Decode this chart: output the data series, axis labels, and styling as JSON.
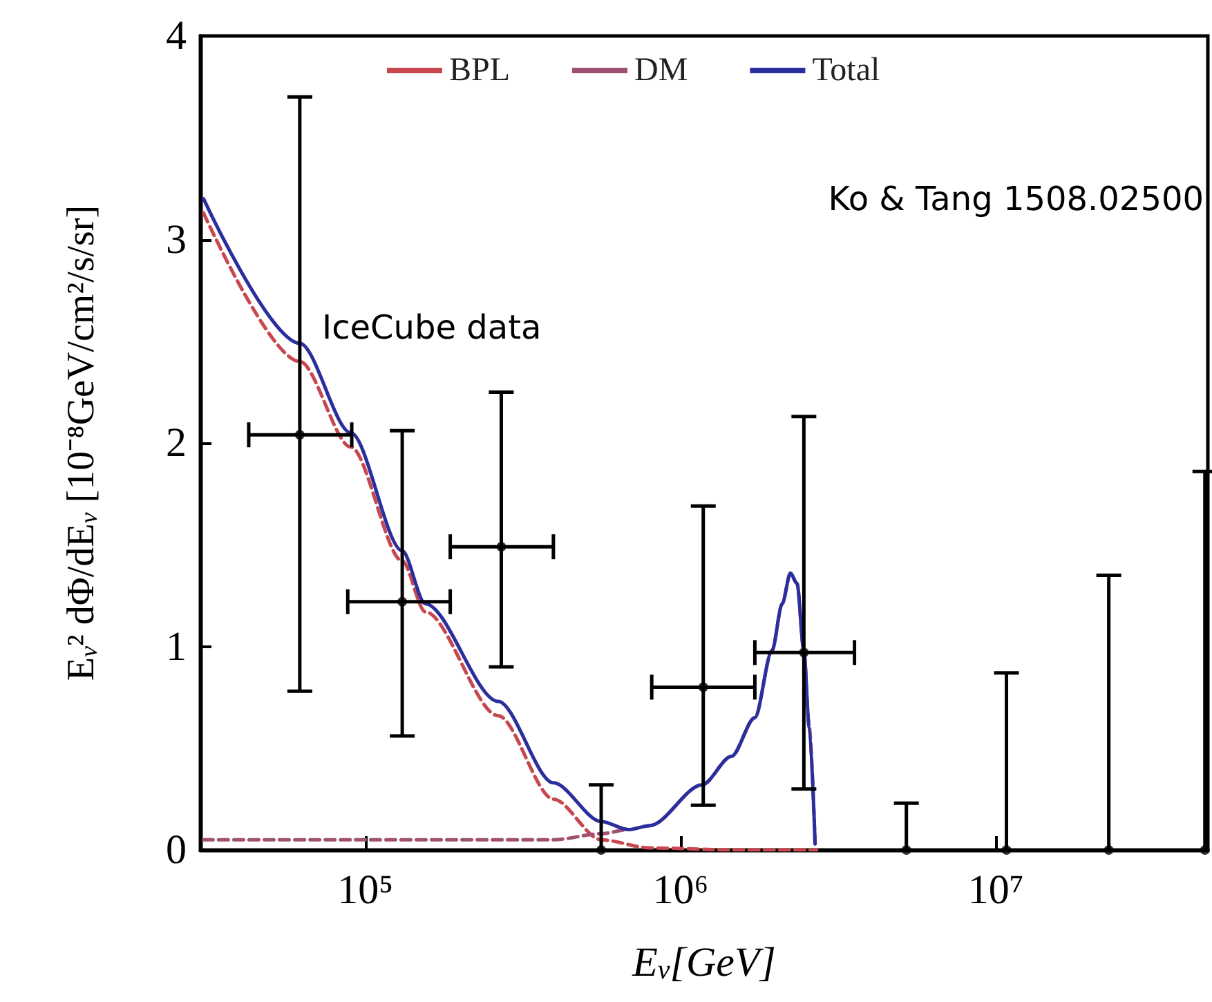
{
  "chart_data": {
    "type": "line",
    "xlabel": "E$_{ν}$[GeV]",
    "ylabel": "E$_{ν}$² dΦ/dE$_{ν}$ [10⁻⁸GeV/cm²/s/sr]",
    "log": "x",
    "xlim": [
      30000,
      47000000
    ],
    "xticks": [
      {
        "value": 100000,
        "label": "10⁵"
      },
      {
        "value": 1000000,
        "label": "10⁶"
      },
      {
        "value": 10000000,
        "label": "10⁷"
      }
    ],
    "ylim": [
      0,
      4
    ],
    "yticks": [
      0,
      1,
      2,
      3,
      4
    ],
    "grid": false,
    "legend": "top",
    "annotations": [
      "Ko & Tang 1508.02500"
    ],
    "series": [
      {
        "name": "BPL",
        "color": "#c8474f",
        "line_style": "dashed",
        "marker": "none",
        "x": [
          30700,
          62000,
          90000,
          131000,
          155000,
          264000,
          395000,
          560000,
          800000,
          1500000,
          2700000
        ],
        "values": [
          3.13,
          2.4,
          1.98,
          1.42,
          1.17,
          0.66,
          0.25,
          0.05,
          0.01,
          0,
          0
        ]
      },
      {
        "name": "DM",
        "color": "#a05070",
        "line_style": "dashed",
        "marker": "none",
        "x": [
          30700,
          100000,
          395000,
          560000,
          684000,
          800000,
          1170000,
          1450000,
          1720000,
          1950000,
          2100000,
          2230000,
          2340000,
          2460000,
          2560000,
          2670000
        ],
        "values": [
          0.05,
          0.05,
          0.05,
          0.08,
          0.1,
          0.12,
          0.32,
          0.46,
          0.65,
          0.98,
          1.21,
          1.36,
          1.31,
          0.98,
          0.6,
          0.03
        ]
      },
      {
        "name": "Total",
        "color": "#2b2f9e",
        "line_style": "solid",
        "marker": "none",
        "x": [
          30700,
          62000,
          90000,
          131000,
          155000,
          264000,
          395000,
          560000,
          684000,
          800000,
          1170000,
          1450000,
          1720000,
          1950000,
          2100000,
          2230000,
          2340000,
          2460000,
          2560000,
          2670000
        ],
        "values": [
          3.2,
          2.49,
          2.05,
          1.47,
          1.21,
          0.73,
          0.33,
          0.14,
          0.1,
          0.12,
          0.32,
          0.46,
          0.65,
          0.98,
          1.21,
          1.36,
          1.31,
          0.98,
          0.6,
          0.03
        ]
      },
      {
        "name": "IceCube data",
        "type": "scatter",
        "color": "#000000",
        "marker": "circle",
        "x": [
          62000,
          131000,
          270000,
          560000,
          1180000,
          2460000,
          5200000,
          10800000,
          22800000,
          46000000
        ],
        "values": [
          2.04,
          1.22,
          1.49,
          0,
          0.8,
          0.97,
          0,
          0,
          0,
          0
        ],
        "errors": [
          [
            0.78,
            3.7
          ],
          [
            0.56,
            2.06
          ],
          [
            0.9,
            2.25
          ],
          [
            0,
            0.32
          ],
          [
            0.22,
            1.69
          ],
          [
            0.3,
            2.13
          ],
          [
            0,
            0.23
          ],
          [
            0,
            0.87
          ],
          [
            0,
            1.35
          ],
          [
            0,
            1.86
          ]
        ],
        "xerrors": [
          [
            42700,
            90600
          ],
          [
            88000,
            186000
          ],
          [
            186000,
            395000
          ],
          null,
          [
            810000,
            1720000
          ],
          [
            1720000,
            3560000
          ],
          null,
          null,
          null,
          null
        ]
      }
    ]
  }
}
